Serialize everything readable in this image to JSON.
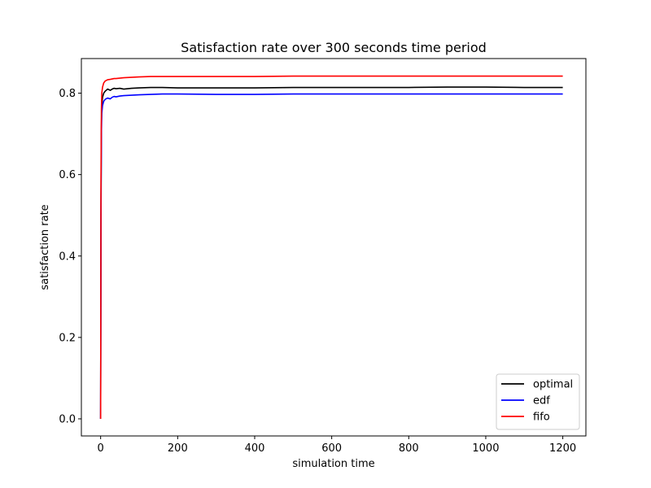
{
  "chart_data": {
    "type": "line",
    "title": "Satisfaction rate over 300 seconds time period",
    "xlabel": "simulation time",
    "ylabel": "satisfaction rate",
    "xlim": [
      -50,
      1260
    ],
    "ylim": [
      -0.042,
      0.885
    ],
    "xticks": [
      0,
      200,
      400,
      600,
      800,
      1000,
      1200
    ],
    "xtick_labels": [
      "0",
      "200",
      "400",
      "600",
      "800",
      "1000",
      "1200"
    ],
    "yticks": [
      0.0,
      0.2,
      0.4,
      0.6,
      0.8
    ],
    "ytick_labels": [
      "0.0",
      "0.2",
      "0.4",
      "0.6",
      "0.8"
    ],
    "grid": false,
    "legend": {
      "placement": "lower-right",
      "entries": [
        "optimal",
        "edf",
        "fifo"
      ]
    },
    "series": [
      {
        "name": "optimal",
        "color": "#000000",
        "x": [
          0,
          1,
          2,
          3,
          5,
          8,
          12,
          18,
          25,
          30,
          35,
          40,
          50,
          60,
          80,
          100,
          130,
          160,
          200,
          300,
          400,
          500,
          600,
          700,
          800,
          900,
          1000,
          1100,
          1200
        ],
        "y": [
          0.0,
          0.55,
          0.72,
          0.77,
          0.79,
          0.8,
          0.805,
          0.81,
          0.807,
          0.81,
          0.812,
          0.811,
          0.812,
          0.81,
          0.812,
          0.813,
          0.814,
          0.814,
          0.813,
          0.813,
          0.813,
          0.814,
          0.814,
          0.814,
          0.814,
          0.815,
          0.815,
          0.814,
          0.814
        ]
      },
      {
        "name": "edf",
        "color": "#0000ff",
        "x": [
          0,
          1,
          2,
          3,
          5,
          8,
          12,
          18,
          25,
          30,
          35,
          40,
          50,
          60,
          80,
          100,
          130,
          160,
          200,
          300,
          400,
          500,
          600,
          700,
          800,
          900,
          1000,
          1100,
          1200
        ],
        "y": [
          0.0,
          0.5,
          0.7,
          0.75,
          0.77,
          0.78,
          0.785,
          0.788,
          0.786,
          0.79,
          0.792,
          0.791,
          0.793,
          0.794,
          0.795,
          0.796,
          0.797,
          0.798,
          0.798,
          0.797,
          0.797,
          0.798,
          0.798,
          0.798,
          0.798,
          0.798,
          0.798,
          0.798,
          0.798
        ]
      },
      {
        "name": "fifo",
        "color": "#ff0000",
        "x": [
          0,
          1,
          2,
          3,
          5,
          8,
          12,
          18,
          25,
          30,
          35,
          40,
          50,
          60,
          80,
          100,
          130,
          160,
          200,
          300,
          400,
          500,
          600,
          700,
          800,
          900,
          1000,
          1100,
          1200
        ],
        "y": [
          0.0,
          0.6,
          0.76,
          0.8,
          0.815,
          0.825,
          0.83,
          0.833,
          0.834,
          0.835,
          0.836,
          0.836,
          0.837,
          0.838,
          0.839,
          0.84,
          0.841,
          0.841,
          0.841,
          0.841,
          0.841,
          0.842,
          0.842,
          0.842,
          0.842,
          0.842,
          0.842,
          0.842,
          0.842
        ]
      }
    ]
  }
}
